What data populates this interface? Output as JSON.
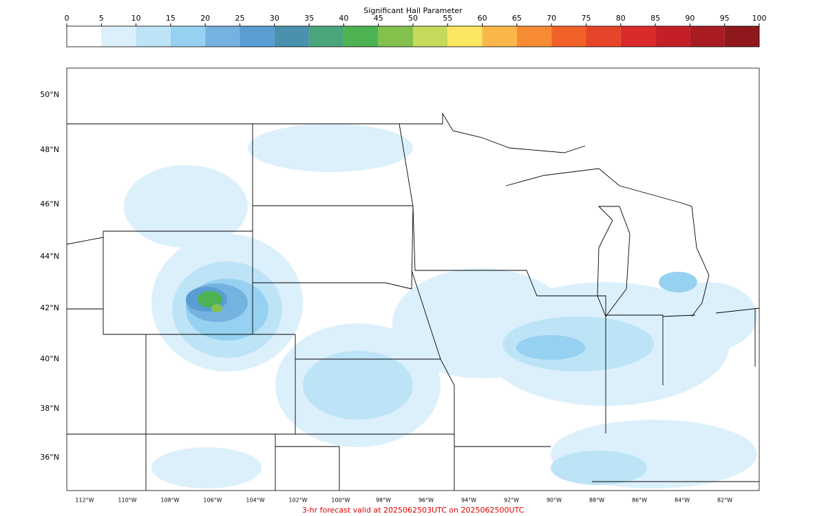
{
  "colorbar": {
    "title": "Significant Hail Parameter",
    "ticks": [
      0,
      5,
      10,
      15,
      20,
      25,
      30,
      35,
      40,
      45,
      50,
      55,
      60,
      65,
      70,
      75,
      80,
      85,
      90,
      95,
      100
    ],
    "colors": [
      "#ffffff",
      "#dcf0fb",
      "#bde3f7",
      "#97d1f1",
      "#74b3e0",
      "#5a9dd3",
      "#4a91ad",
      "#4aa57a",
      "#4db352",
      "#82c24c",
      "#c4da5a",
      "#fce560",
      "#f9b74a",
      "#f68b33",
      "#f26128",
      "#e7452a",
      "#db2a2b",
      "#c41f26",
      "#a81c22",
      "#8f181c"
    ]
  },
  "map": {
    "lat_labels": [
      "50°N",
      "48°N",
      "46°N",
      "44°N",
      "42°N",
      "40°N",
      "38°N",
      "36°N"
    ],
    "lon_labels": [
      "112°W",
      "110°W",
      "108°W",
      "106°W",
      "104°W",
      "102°W",
      "100°W",
      "98°W",
      "96°W",
      "94°W",
      "92°W",
      "90°W",
      "88°W",
      "86°W",
      "84°W",
      "82°W"
    ]
  },
  "footer": "3-hr forecast valid at 2025062503UTC on 2025062500UTC"
}
